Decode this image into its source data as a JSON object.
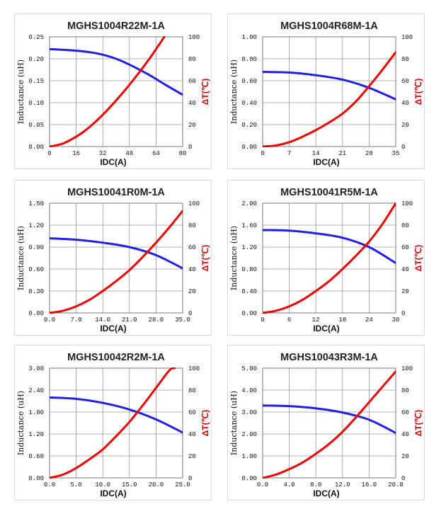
{
  "colors": {
    "inductance": "#1f1fe6",
    "temperature": "#f00000",
    "grid": "#9a9a9a"
  },
  "chart_data": [
    {
      "type": "line",
      "title": "MGHS1004R22M-1A",
      "xlabel": "IDC(A)",
      "ylabel": "Inductance  (uH)",
      "y2label": "ΔT(℃)",
      "xlim": [
        0,
        80
      ],
      "xticks": [
        "0",
        "16",
        "32",
        "48",
        "64",
        "80"
      ],
      "ylim": [
        0,
        0.25
      ],
      "yticks": [
        "0.00",
        "0.05",
        "0.10",
        "0.15",
        "0.20",
        "0.25"
      ],
      "y2lim": [
        0,
        100
      ],
      "y2ticks": [
        "0",
        "20",
        "40",
        "60",
        "80",
        "100"
      ],
      "series": [
        {
          "name": "Inductance",
          "axis": "y",
          "x": [
            0,
            10,
            20,
            30,
            40,
            50,
            60,
            70,
            80
          ],
          "y": [
            0.222,
            0.22,
            0.217,
            0.211,
            0.2,
            0.183,
            0.163,
            0.14,
            0.118
          ]
        },
        {
          "name": "Temperature rise",
          "axis": "y2",
          "x": [
            0,
            5,
            10,
            20,
            30,
            40,
            50,
            60,
            69
          ],
          "y": [
            0,
            1.5,
            4,
            13,
            26,
            42,
            60,
            80,
            100
          ]
        }
      ]
    },
    {
      "type": "line",
      "title": "MGHS1004R68M-1A",
      "xlabel": "IDC(A)",
      "ylabel": "Inductance  (uH)",
      "y2label": "ΔT(℃)",
      "xlim": [
        0,
        35
      ],
      "xticks": [
        "0",
        "7",
        "14",
        "21",
        "28",
        "35"
      ],
      "ylim": [
        0,
        1.0
      ],
      "yticks": [
        "0.00",
        "0.20",
        "0.40",
        "0.60",
        "0.80",
        "1.00"
      ],
      "y2lim": [
        0,
        100
      ],
      "y2ticks": [
        "0",
        "20",
        "40",
        "60",
        "80",
        "100"
      ],
      "series": [
        {
          "name": "Inductance",
          "axis": "y",
          "x": [
            0,
            7,
            14,
            21,
            28,
            35
          ],
          "y": [
            0.68,
            0.675,
            0.65,
            0.61,
            0.535,
            0.43
          ]
        },
        {
          "name": "Temperature rise",
          "axis": "y2",
          "x": [
            0,
            3.5,
            7,
            10.5,
            14,
            17.5,
            21,
            24.5,
            28,
            31.5,
            35
          ],
          "y": [
            0,
            1,
            4,
            9,
            15,
            22,
            30,
            41,
            55,
            70,
            86
          ]
        }
      ]
    },
    {
      "type": "line",
      "title": "MGHS10041R0M-1A",
      "xlabel": "IDC(A)",
      "ylabel": "Inductance  (uH)",
      "y2label": "ΔT(℃)",
      "xlim": [
        0,
        35
      ],
      "xticks": [
        "0.0",
        "7.0",
        "14.0",
        "21.0",
        "28.0",
        "35.0"
      ],
      "ylim": [
        0,
        1.5
      ],
      "yticks": [
        "0.00",
        "0.30",
        "0.60",
        "0.90",
        "1.20",
        "1.50"
      ],
      "y2lim": [
        0,
        100
      ],
      "y2ticks": [
        "0",
        "20",
        "40",
        "60",
        "80",
        "100"
      ],
      "series": [
        {
          "name": "Inductance",
          "axis": "y",
          "x": [
            0,
            7,
            14,
            21,
            28,
            35
          ],
          "y": [
            1.02,
            1.0,
            0.96,
            0.9,
            0.79,
            0.61
          ]
        },
        {
          "name": "Temperature rise",
          "axis": "y2",
          "x": [
            0,
            3.5,
            7,
            10.5,
            14,
            17.5,
            21,
            24.5,
            28,
            31.5,
            35
          ],
          "y": [
            0,
            2,
            6,
            12,
            20,
            29,
            39,
            51,
            64,
            78,
            93
          ]
        }
      ]
    },
    {
      "type": "line",
      "title": "MGHS10041R5M-1A",
      "xlabel": "IDC(A)",
      "ylabel": "Inductance  (uH)",
      "y2label": "ΔT(℃)",
      "xlim": [
        0,
        30
      ],
      "xticks": [
        "0",
        "6",
        "12",
        "18",
        "24",
        "30"
      ],
      "ylim": [
        0,
        2.0
      ],
      "yticks": [
        "0.00",
        "0.40",
        "0.80",
        "1.20",
        "1.60",
        "2.00"
      ],
      "y2lim": [
        0,
        100
      ],
      "y2ticks": [
        "0",
        "20",
        "40",
        "60",
        "80",
        "100"
      ],
      "series": [
        {
          "name": "Inductance",
          "axis": "y",
          "x": [
            0,
            6,
            12,
            18,
            24,
            30
          ],
          "y": [
            1.51,
            1.5,
            1.45,
            1.37,
            1.2,
            0.91
          ]
        },
        {
          "name": "Temperature rise",
          "axis": "y2",
          "x": [
            0,
            3,
            6,
            9,
            12,
            15,
            18,
            21,
            24,
            27,
            30
          ],
          "y": [
            0,
            2,
            6,
            12,
            20,
            29,
            40,
            52,
            65,
            81,
            100
          ]
        }
      ]
    },
    {
      "type": "line",
      "title": "MGHS10042R2M-1A",
      "xlabel": "IDC(A)",
      "ylabel": "Inductance  (uH)",
      "y2label": "ΔT(℃)",
      "xlim": [
        0,
        25
      ],
      "xticks": [
        "0.0",
        "5.0",
        "10.0",
        "15.0",
        "20.0",
        "25.0"
      ],
      "ylim": [
        0,
        3.0
      ],
      "yticks": [
        "0.00",
        "0.60",
        "1.20",
        "1.80",
        "2.40",
        "3.00"
      ],
      "y2lim": [
        0,
        100
      ],
      "y2ticks": [
        "0",
        "20",
        "40",
        "60",
        "80",
        "100"
      ],
      "series": [
        {
          "name": "Inductance",
          "axis": "y",
          "x": [
            0,
            5,
            10,
            15,
            20,
            25
          ],
          "y": [
            2.2,
            2.16,
            2.05,
            1.87,
            1.6,
            1.24
          ]
        },
        {
          "name": "Temperature rise",
          "axis": "y2",
          "x": [
            0,
            2.5,
            5,
            7.5,
            10,
            12.5,
            15,
            17.5,
            20,
            22.5,
            23.5
          ],
          "y": [
            0,
            3,
            9,
            17,
            26,
            38,
            51,
            66,
            82,
            98,
            100
          ]
        }
      ]
    },
    {
      "type": "line",
      "title": "MGHS10043R3M-1A",
      "xlabel": "IDC(A)",
      "ylabel": "Inductance  (uH)",
      "y2label": "ΔT(℃)",
      "xlim": [
        0,
        20
      ],
      "xticks": [
        "0.0",
        "4.0",
        "8.0",
        "12.0",
        "16.0",
        "20.0"
      ],
      "ylim": [
        0,
        5.0
      ],
      "yticks": [
        "0.00",
        "1.00",
        "2.00",
        "3.00",
        "4.00",
        "5.00"
      ],
      "y2lim": [
        0,
        100
      ],
      "y2ticks": [
        "0",
        "20",
        "40",
        "60",
        "80",
        "100"
      ],
      "series": [
        {
          "name": "Inductance",
          "axis": "y",
          "x": [
            0,
            4,
            8,
            12,
            16,
            20
          ],
          "y": [
            3.3,
            3.27,
            3.17,
            2.98,
            2.65,
            2.05
          ]
        },
        {
          "name": "Temperature rise",
          "axis": "y2",
          "x": [
            0,
            2,
            4,
            6,
            8,
            10,
            12,
            14,
            16,
            18,
            20
          ],
          "y": [
            0,
            3,
            8,
            14,
            22,
            31,
            42,
            55,
            69,
            83,
            97
          ]
        }
      ]
    }
  ]
}
